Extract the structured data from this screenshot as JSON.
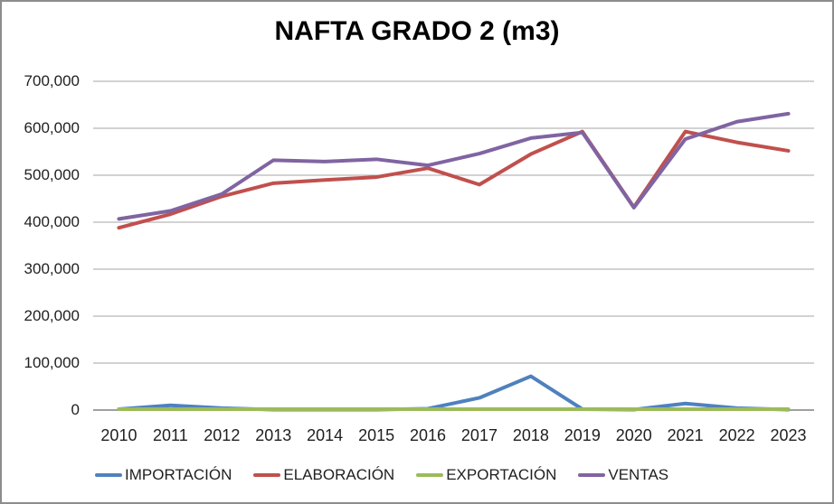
{
  "title": "NAFTA GRADO 2 (m3)",
  "colors": {
    "gridline": "#a6a6a6",
    "axis_line": "#808080",
    "frame_border": "#8c8c8c",
    "text": "#1f1f1f",
    "importacion": "#4F81BD",
    "elaboracion": "#C0504D",
    "exportacion": "#9BBB59",
    "ventas": "#8064A2"
  },
  "chart_data": {
    "type": "line",
    "title": "NAFTA GRADO 2 (m3)",
    "categories": [
      "2010",
      "2011",
      "2012",
      "2013",
      "2014",
      "2015",
      "2016",
      "2017",
      "2018",
      "2019",
      "2020",
      "2021",
      "2022",
      "2023"
    ],
    "series": [
      {
        "name": "IMPORTACIÓN",
        "color": "#4F81BD",
        "values": [
          2000,
          10000,
          4000,
          1000,
          1000,
          1000,
          3000,
          26000,
          72000,
          2000,
          1000,
          14000,
          4000,
          1000
        ]
      },
      {
        "name": "ELABORACIÓN",
        "color": "#C0504D",
        "values": [
          388000,
          417000,
          455000,
          483000,
          490000,
          496000,
          515000,
          480000,
          545000,
          593000,
          432000,
          593000,
          570000,
          552000
        ]
      },
      {
        "name": "EXPORTACIÓN",
        "color": "#9BBB59",
        "values": [
          2000,
          2000,
          2000,
          2000,
          2000,
          2000,
          2000,
          2000,
          2000,
          2000,
          2000,
          2000,
          2000,
          2000
        ]
      },
      {
        "name": "VENTAS",
        "color": "#8064A2",
        "values": [
          407000,
          424000,
          460000,
          532000,
          529000,
          534000,
          521000,
          546000,
          579000,
          591000,
          431000,
          577000,
          614000,
          631000
        ]
      }
    ],
    "ylim": [
      0,
      700000
    ],
    "ytick_step": 100000,
    "ytick_labels": [
      "0",
      "100,000",
      "200,000",
      "300,000",
      "400,000",
      "500,000",
      "600,000",
      "700,000"
    ],
    "grid": true,
    "legend_position": "bottom"
  }
}
